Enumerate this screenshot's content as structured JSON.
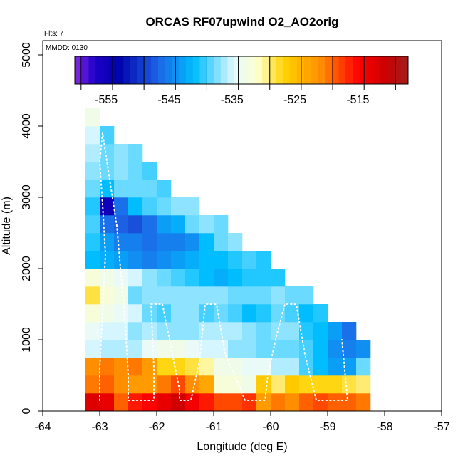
{
  "chart_data": {
    "type": "heatmap",
    "title": "ORCAS RF07upwind O2_AO2orig",
    "xlabel": "Longitude (deg E)",
    "ylabel": "Altitude (m)",
    "xlim": [
      -64,
      -57
    ],
    "ylim": [
      0,
      5200
    ],
    "x_ticks": [
      "-64",
      "-63",
      "-62",
      "-61",
      "-60",
      "-59",
      "-58",
      "-57"
    ],
    "y_ticks": [
      "0",
      "1000",
      "2000",
      "3000",
      "4000",
      "5000"
    ],
    "annotations": {
      "flights": "Flts: 7",
      "date": "MMDD: 0130"
    },
    "colorbar": {
      "range": [
        -560,
        -507
      ],
      "tick_values": [
        -555,
        -545,
        -535,
        -525,
        -515
      ],
      "tick_labels": [
        "-555",
        "-545",
        "-535",
        "-525",
        "-515"
      ]
    },
    "grid": {
      "lon_start": -63.25,
      "lon_step": 0.25,
      "alt_step": 250,
      "rows": [
        [
          -512,
          -513,
          -519,
          -516,
          -515,
          -513,
          -511,
          -514,
          -516,
          -518,
          -518,
          -517,
          -522,
          -520,
          -521,
          -519,
          -518,
          -519,
          -519,
          -520
        ],
        [
          -520,
          -519,
          -521,
          -522,
          -522,
          -520,
          -518,
          -521,
          -523,
          -532,
          -532,
          -533,
          -526,
          -529,
          -526,
          -527,
          -527,
          -527,
          -528,
          -529
        ],
        [
          -521,
          -520,
          -521,
          -520,
          -522,
          -527,
          -527,
          -528,
          -530,
          -533,
          -533,
          -534,
          -534,
          -536,
          -536,
          -539,
          -541,
          -543,
          -543,
          -538
        ],
        [
          -535,
          -536,
          -536,
          -536,
          -534,
          -533,
          -533,
          -534,
          -535,
          -535,
          -537,
          -537,
          -538,
          -538,
          -538,
          -539,
          -541,
          -544,
          -545,
          -544
        ],
        [
          -534,
          -535,
          -535,
          -537,
          -536,
          -537,
          -537,
          -537,
          -536,
          -536,
          -536,
          -537,
          -538,
          -537,
          -537,
          -540,
          -541,
          -543,
          -546,
          null
        ],
        [
          -532,
          -533,
          -534,
          -535,
          -538,
          -539,
          -537,
          -537,
          -539,
          -538,
          -539,
          -541,
          -540,
          -538,
          -539,
          -541,
          -540,
          null,
          null,
          null
        ],
        [
          -528,
          -532,
          -533,
          -538,
          -537,
          -537,
          -537,
          -537,
          -537,
          -537,
          -538,
          -538,
          -538,
          -537,
          -538,
          -538,
          null,
          null,
          null,
          null
        ],
        [
          -532,
          -533,
          -534,
          -535,
          -537,
          -538,
          -539,
          -540,
          -541,
          -542,
          -541,
          -540,
          -540,
          -540,
          null,
          null,
          null,
          null,
          null,
          null
        ],
        [
          -541,
          -542,
          -543,
          -544,
          -545,
          -544,
          -543,
          -542,
          -541,
          -541,
          -540,
          -539,
          -540,
          null,
          null,
          null,
          null,
          null,
          null,
          null
        ],
        [
          -540,
          -543,
          -545,
          -545,
          -546,
          -545,
          -545,
          -544,
          -541,
          -538,
          -537,
          null,
          null,
          null,
          null,
          null,
          null,
          null,
          null,
          null
        ],
        [
          -539,
          -546,
          -547,
          -548,
          -546,
          -543,
          -542,
          -538,
          -537,
          -538,
          null,
          null,
          null,
          null,
          null,
          null,
          null,
          null,
          null,
          null
        ],
        [
          -540,
          -555,
          -546,
          -541,
          -539,
          -538,
          -537,
          -537,
          null,
          null,
          null,
          null,
          null,
          null,
          null,
          null,
          null,
          null,
          null,
          null
        ],
        [
          -538,
          -541,
          -538,
          -538,
          -538,
          -539,
          null,
          null,
          null,
          null,
          null,
          null,
          null,
          null,
          null,
          null,
          null,
          null,
          null,
          null
        ],
        [
          -537,
          -538,
          -537,
          -538,
          -539,
          null,
          null,
          null,
          null,
          null,
          null,
          null,
          null,
          null,
          null,
          null,
          null,
          null,
          null,
          null
        ],
        [
          -536,
          -538,
          -537,
          -538,
          null,
          null,
          null,
          null,
          null,
          null,
          null,
          null,
          null,
          null,
          null,
          null,
          null,
          null,
          null,
          null
        ],
        [
          -535,
          -539,
          null,
          null,
          null,
          null,
          null,
          null,
          null,
          null,
          null,
          null,
          null,
          null,
          null,
          null,
          null,
          null,
          null,
          null
        ],
        [
          -533,
          null,
          null,
          null,
          null,
          null,
          null,
          null,
          null,
          null,
          null,
          null,
          null,
          null,
          null,
          null,
          null,
          null,
          null,
          null
        ]
      ]
    },
    "flight_track": [
      [
        -63.0,
        150
      ],
      [
        -63.0,
        600
      ],
      [
        -62.95,
        1400
      ],
      [
        -62.9,
        2200
      ],
      [
        -62.95,
        2900
      ],
      [
        -63.0,
        3500
      ],
      [
        -62.95,
        3900
      ],
      [
        -62.7,
        2600
      ],
      [
        -62.55,
        1200
      ],
      [
        -62.5,
        500
      ],
      [
        -62.5,
        150
      ],
      [
        -62.3,
        150
      ],
      [
        -62.05,
        150
      ],
      [
        -62.05,
        600
      ],
      [
        -62.1,
        1500
      ],
      [
        -61.9,
        1500
      ],
      [
        -61.75,
        900
      ],
      [
        -61.6,
        300
      ],
      [
        -61.6,
        150
      ],
      [
        -61.4,
        150
      ],
      [
        -61.25,
        700
      ],
      [
        -61.15,
        1500
      ],
      [
        -60.95,
        1500
      ],
      [
        -60.8,
        800
      ],
      [
        -60.55,
        350
      ],
      [
        -60.45,
        150
      ],
      [
        -60.1,
        150
      ],
      [
        -60.05,
        500
      ],
      [
        -59.9,
        1050
      ],
      [
        -59.75,
        1500
      ],
      [
        -59.55,
        1500
      ],
      [
        -59.4,
        800
      ],
      [
        -59.2,
        150
      ],
      [
        -58.65,
        150
      ],
      [
        -58.75,
        1000
      ]
    ]
  }
}
